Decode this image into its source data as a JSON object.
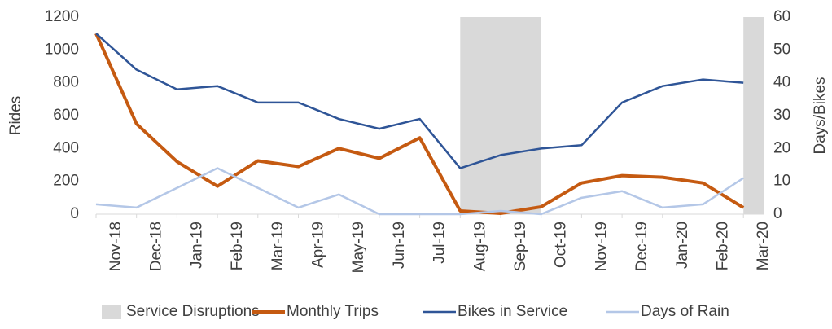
{
  "chart_data": {
    "type": "line",
    "ylabel": "Rides",
    "y2label": "Days/Bikes",
    "categories": [
      "Nov-18",
      "Dec-18",
      "Jan-19",
      "Feb-19",
      "Mar-19",
      "Apr-19",
      "May-19",
      "Jun-19",
      "Jul-19",
      "Aug-19",
      "Sep-19",
      "Oct-19",
      "Nov-19",
      "Dec-19",
      "Jan-20",
      "Feb-20",
      "Mar-20"
    ],
    "series": [
      {
        "name": "Service Disruptions",
        "type": "bar",
        "axis": "y2",
        "color": "#d9d9d9",
        "values": [
          0,
          0,
          0,
          0,
          0,
          0,
          0,
          0,
          0,
          60,
          60,
          0,
          0,
          0,
          0,
          0,
          60
        ]
      },
      {
        "name": "Monthly Trips",
        "type": "line",
        "color": "#c55a11",
        "width": 4,
        "values": [
          1100,
          550,
          320,
          170,
          325,
          290,
          400,
          340,
          465,
          20,
          5,
          45,
          190,
          235,
          225,
          190,
          40
        ]
      },
      {
        "name": "Bikes in Service",
        "type": "line",
        "axis": "y2",
        "color": "#2f5597",
        "width": 2.5,
        "values": [
          55,
          44,
          38,
          39,
          34,
          34,
          29,
          26,
          29,
          14,
          18,
          20,
          21,
          34,
          39,
          41,
          40
        ]
      },
      {
        "name": "Days of Rain",
        "type": "line",
        "axis": "y2",
        "color": "#b4c7e7",
        "width": 2.5,
        "values": [
          3,
          2,
          8,
          14,
          8,
          2,
          6,
          0,
          0,
          0,
          1,
          0,
          5,
          7,
          2,
          3,
          11
        ]
      }
    ],
    "ylim": [
      0,
      1200
    ],
    "yticks": [
      0,
      200,
      400,
      600,
      800,
      1000,
      1200
    ],
    "y2lim": [
      0,
      60
    ],
    "y2ticks": [
      0,
      10,
      20,
      30,
      40,
      50,
      60
    ],
    "legend": "bottom"
  }
}
